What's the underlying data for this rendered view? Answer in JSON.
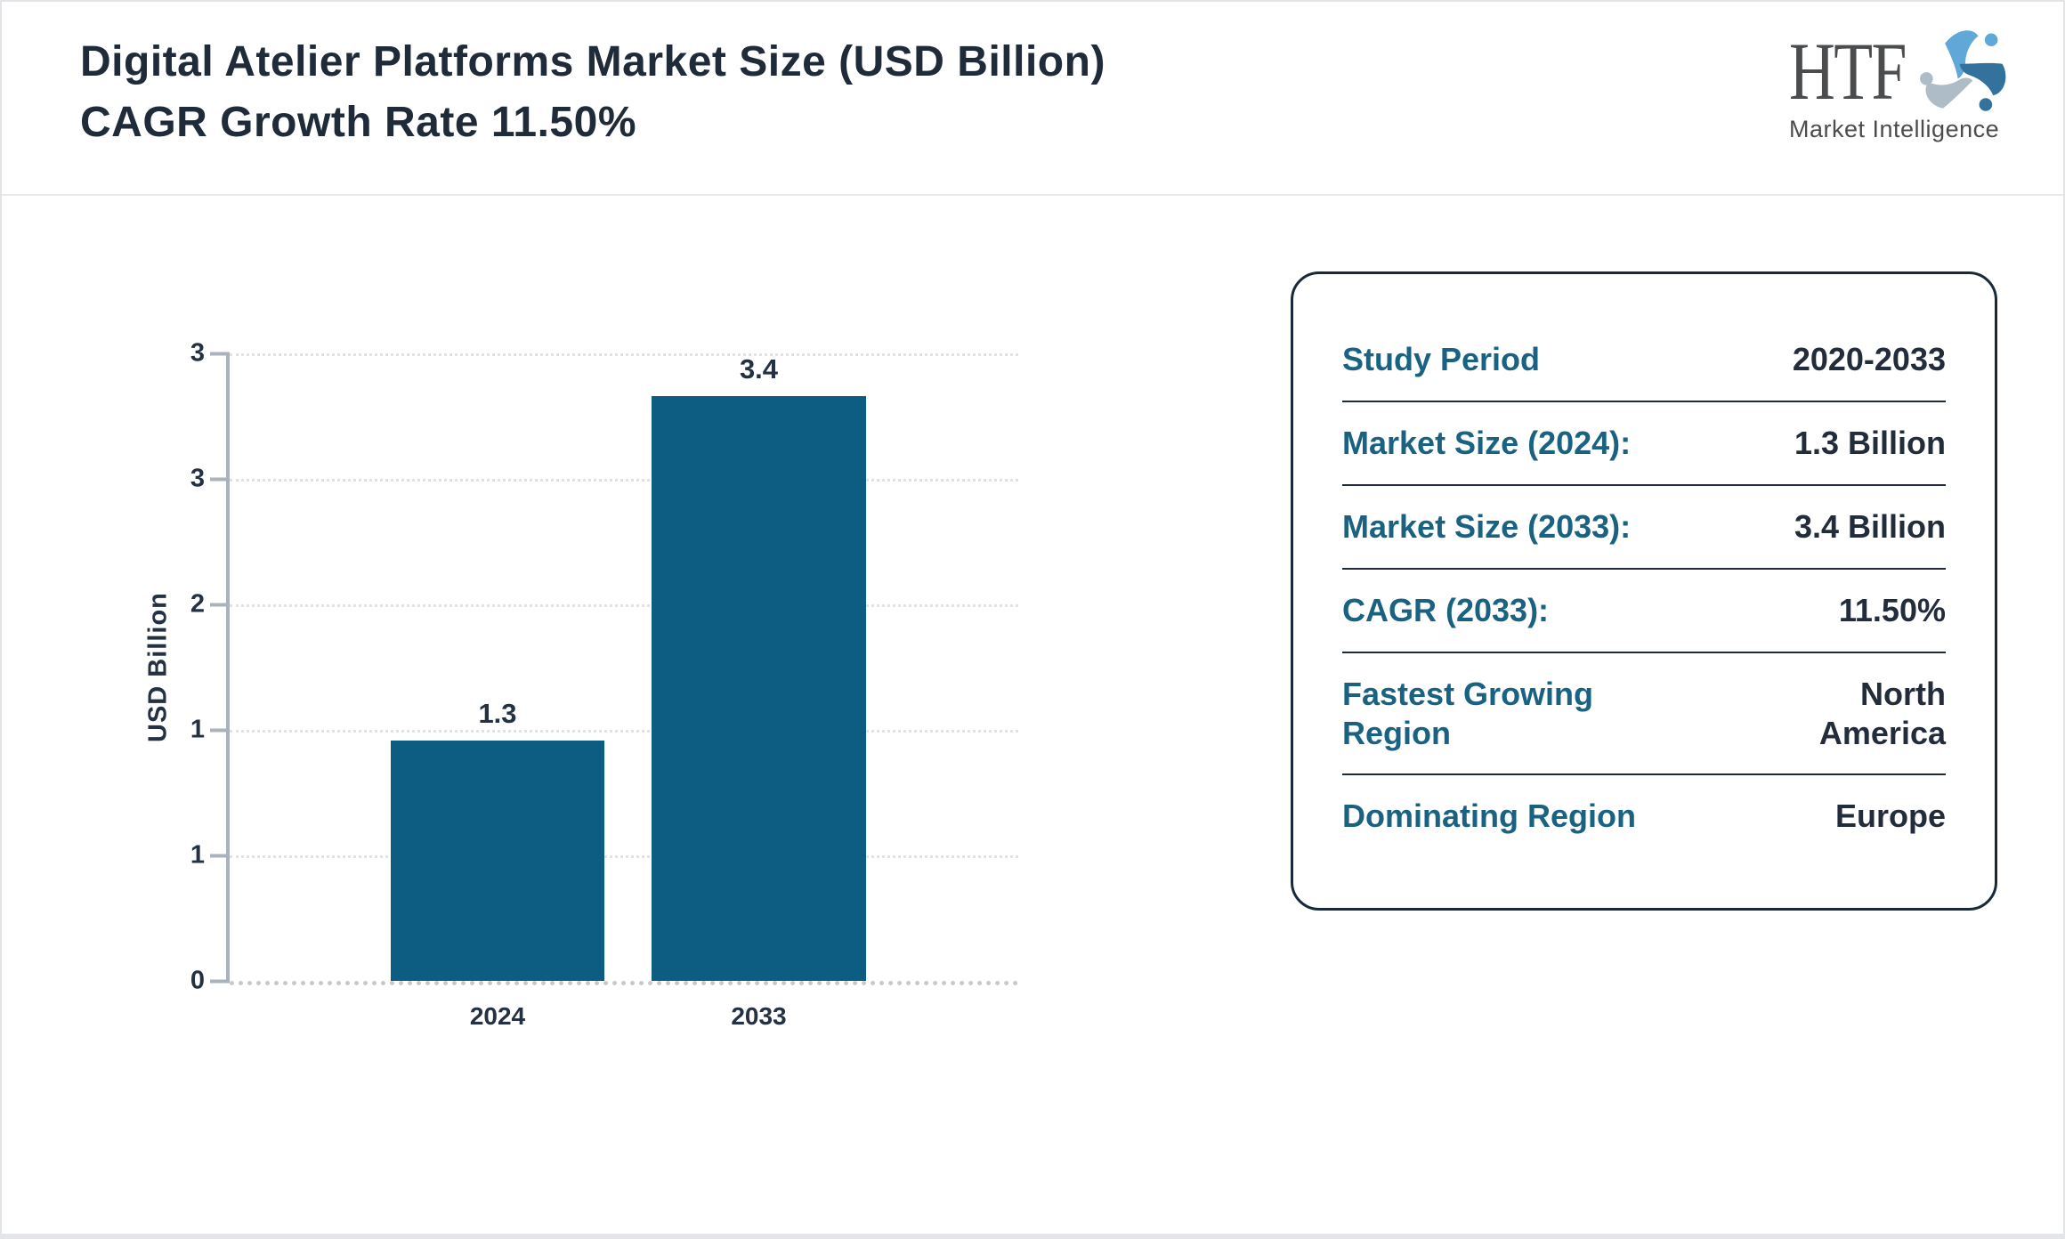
{
  "header": {
    "title": "Digital Atelier Platforms Market Size (USD Billion) CAGR Growth Rate 11.50%",
    "logo": {
      "name": "HTF",
      "subtitle": "Market Intelligence"
    }
  },
  "chart_data": {
    "type": "bar",
    "categories": [
      "2024",
      "2033"
    ],
    "values": [
      1.3,
      3.4
    ],
    "value_labels": [
      "1.3",
      "3.4"
    ],
    "title": "Digital Atelier Platforms Market Size (USD Billion) CAGR Growth Rate 11.50%",
    "xlabel": "",
    "ylabel": "USD Billion",
    "ylim": [
      0,
      3.4
    ],
    "ytick_labels_top_to_bottom": [
      "3",
      "3",
      "2",
      "1",
      "1",
      "0"
    ],
    "grid": "horizontal dotted gridlines",
    "legend": "none",
    "bar_color": "#0d5c82"
  },
  "info_panel": {
    "rows": [
      {
        "label": "Study Period",
        "value": "2020-2033"
      },
      {
        "label": "Market Size (2024):",
        "value": "1.3 Billion"
      },
      {
        "label": "Market Size (2033):",
        "value": "3.4 Billion"
      },
      {
        "label": "CAGR (2033):",
        "value": "11.50%"
      },
      {
        "label": "Fastest Growing Region",
        "value": "North America"
      },
      {
        "label": "Dominating Region",
        "value": "Europe"
      }
    ]
  },
  "colors": {
    "bar": "#0d5c82",
    "panel_label_teal": "#1a6282",
    "dark_text": "#222c3a",
    "axis_gray": "#aab3bc",
    "gridline": "#e0e2e5",
    "logo_blue_light": "#5fa8d8",
    "logo_blue_steel": "#34729e",
    "logo_gray": "#adbcc7"
  }
}
